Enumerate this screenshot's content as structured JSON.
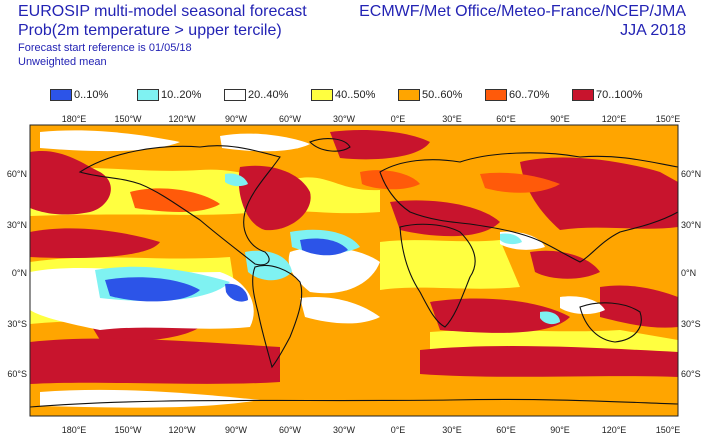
{
  "header": {
    "title_line1": "EUROSIP multi-model seasonal forecast",
    "title_line2": "Prob(2m temperature > upper tercile)",
    "forecast_ref": "Forecast start reference is 01/05/18",
    "mean_type": "Unweighted mean",
    "source": "ECMWF/Met Office/Meteo-France/NCEP/JMA",
    "season": "JJA 2018"
  },
  "legend": [
    {
      "label": "0..10%",
      "color": "#2c54e8"
    },
    {
      "label": "10..20%",
      "color": "#7ff2f2"
    },
    {
      "label": "20..40%",
      "color": "#ffffff"
    },
    {
      "label": "40..50%",
      "color": "#ffff40"
    },
    {
      "label": "50..60%",
      "color": "#ffa500"
    },
    {
      "label": "60..70%",
      "color": "#ff5a0a"
    },
    {
      "label": "70..100%",
      "color": "#c8142d"
    }
  ],
  "map": {
    "lon_labels_top": [
      "180°E",
      "150°W",
      "120°W",
      "90°W",
      "60°W",
      "30°W",
      "0°E",
      "30°E",
      "60°E",
      "90°E",
      "120°E",
      "150°E"
    ],
    "lon_labels_bottom": [
      "180°E",
      "150°W",
      "120°W",
      "90°W",
      "60°W",
      "30°W",
      "0°E",
      "30°E",
      "60°E",
      "90°E",
      "120°E",
      "150°E"
    ],
    "lat_labels_left": [
      "60°N",
      "30°N",
      "0°N",
      "30°S",
      "60°S"
    ],
    "lat_labels_right": [
      "60°N",
      "30°N",
      "0°N",
      "30°S",
      "60°S"
    ]
  }
}
